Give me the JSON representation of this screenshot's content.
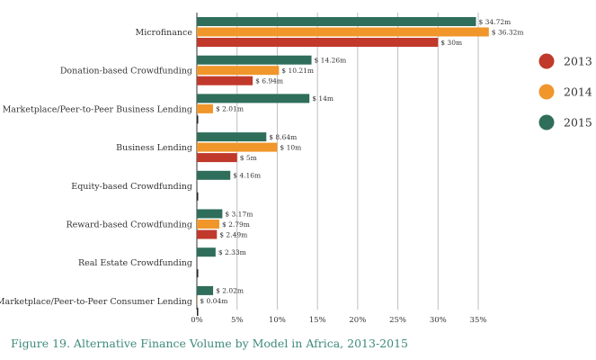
{
  "chart_data": {
    "type": "bar",
    "orientation": "horizontal",
    "title": "",
    "xlabel": "",
    "ylabel": "",
    "xlim": [
      0,
      37
    ],
    "x_ticks": [
      0,
      5,
      10,
      15,
      20,
      25,
      30,
      35
    ],
    "x_tick_labels": [
      "0%",
      "5%",
      "10%",
      "15%",
      "20%",
      "25%",
      "30%",
      "35%"
    ],
    "grid": true,
    "legend_position": "right",
    "categories": [
      "Microfinance",
      "Donation-based Crowdfunding",
      "Marketplace/Peer-to-Peer Business Lending",
      "Business Lending",
      "Equity-based Crowdfunding",
      "Reward-based Crowdfunding",
      "Real Estate Crowdfunding",
      "Marketplace/Peer-to-Peer Consumer Lending"
    ],
    "series": [
      {
        "name": "2015",
        "color": "#2f6e5b",
        "values": [
          34.72,
          14.26,
          14,
          8.64,
          4.16,
          3.17,
          2.33,
          2.02
        ],
        "labels": [
          "$ 34.72m",
          "$ 14.26m",
          "$ 14m",
          "$ 8.64m",
          "$ 4.16m",
          "$ 3.17m",
          "$ 2.33m",
          "$ 2.02m"
        ]
      },
      {
        "name": "2014",
        "color": "#f0962a",
        "values": [
          36.32,
          10.21,
          2.01,
          10,
          0,
          2.79,
          0,
          0.04
        ],
        "labels": [
          "$ 36.32m",
          "$ 10.21m",
          "$ 2.01m",
          "$ 10m",
          "",
          "$ 2.79m",
          "",
          "$ 0.04m"
        ]
      },
      {
        "name": "2013",
        "color": "#c0392b",
        "values": [
          30,
          6.94,
          0,
          5,
          0,
          2.49,
          0,
          0
        ],
        "labels": [
          "$ 30m",
          "$ 6.94m",
          "",
          "$ 5m",
          "",
          "$ 2.49m",
          "",
          ""
        ]
      }
    ],
    "legend_order": [
      "2013",
      "2014",
      "2015"
    ]
  },
  "caption": "Figure 19. Alternative Finance Volume by Model in Africa, 2013-2015"
}
